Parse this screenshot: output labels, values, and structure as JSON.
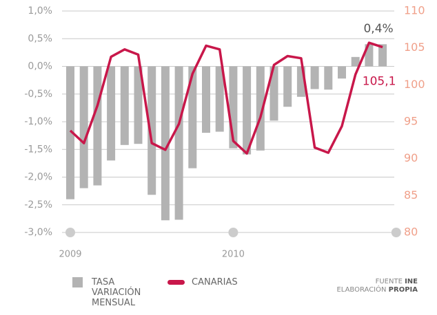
{
  "chart_data": {
    "type": "bar",
    "categories": [
      "2009",
      null,
      null,
      null,
      null,
      null,
      null,
      null,
      null,
      null,
      null,
      null,
      "2010",
      null,
      null,
      null,
      null,
      null,
      null,
      null,
      null,
      null,
      null,
      null
    ],
    "series": [
      {
        "name": "TASA VARIACIÓN MENSUAL",
        "type": "bar",
        "color": "#b3b3b3",
        "values": [
          -2.4,
          -2.2,
          -2.15,
          -1.7,
          -1.42,
          -1.4,
          -2.32,
          -2.78,
          -2.77,
          -1.84,
          -1.2,
          -1.18,
          -1.48,
          -1.59,
          -1.52,
          -0.98,
          -0.73,
          -0.55,
          -0.41,
          -0.42,
          -0.22,
          0.17,
          0.4,
          0.4
        ],
        "value_labels": [
          null,
          null,
          null,
          null,
          null,
          null,
          null,
          null,
          null,
          null,
          null,
          null,
          null,
          null,
          null,
          null,
          null,
          null,
          null,
          null,
          null,
          null,
          null,
          "0,4%"
        ]
      },
      {
        "name": "CANARIAS",
        "type": "line",
        "color": "#c8174a",
        "axis": "y2",
        "values": [
          93.8,
          92.1,
          97.2,
          103.8,
          104.8,
          104.1,
          92.1,
          91.2,
          94.7,
          101.5,
          105.3,
          104.8,
          92.4,
          90.7,
          95.6,
          102.7,
          103.9,
          103.6,
          91.5,
          90.8,
          94.4,
          101.4,
          105.7,
          105.1
        ],
        "value_labels": [
          null,
          null,
          null,
          null,
          null,
          null,
          null,
          null,
          null,
          null,
          null,
          null,
          null,
          null,
          null,
          null,
          null,
          null,
          null,
          null,
          null,
          null,
          null,
          "105,1"
        ]
      }
    ],
    "ylim": [
      -3.0,
      1.0
    ],
    "yticks": [
      {
        "value": 1.0,
        "label": "1,0%"
      },
      {
        "value": 0.5,
        "label": "0,5%"
      },
      {
        "value": 0.0,
        "label": "0,0%"
      },
      {
        "value": -0.5,
        "label": "-0,5%"
      },
      {
        "value": -1.0,
        "label": "-1,0%"
      },
      {
        "value": -1.5,
        "label": "-1,5%"
      },
      {
        "value": -2.0,
        "label": "-2,0%"
      },
      {
        "value": -2.5,
        "label": "-2,5%"
      },
      {
        "value": -3.0,
        "label": "-3,0%"
      }
    ],
    "y2lim": [
      80,
      110
    ],
    "y2ticks": [
      80,
      85,
      90,
      95,
      100,
      105,
      110
    ],
    "grid": true,
    "source": {
      "label": "FUENTE",
      "value": "INE"
    },
    "credit": {
      "label": "ELABORACIÓN",
      "value": "PROPIA"
    }
  }
}
